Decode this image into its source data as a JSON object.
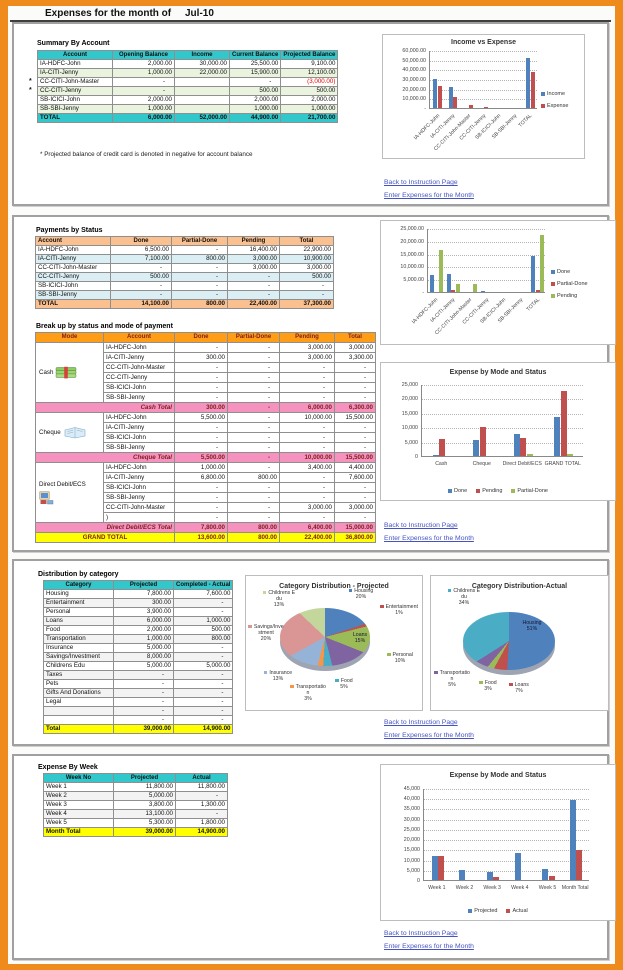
{
  "page": {
    "title_label": "Expenses for the month of",
    "title_month": "Jul-10"
  },
  "links": {
    "back": "Back to Instruction Page",
    "enter": "Enter Expenses for the Month"
  },
  "colors": {
    "frame": "#EF8A1D",
    "teal_header": "#31C7CB",
    "peach_header": "#FAC08F",
    "orange_header": "#FF9E16",
    "pink_subtotal": "#F592BE",
    "yellow_total": "#FFFF00",
    "negative": "#E00000",
    "link": "#4553C2"
  },
  "summary": {
    "label": "Summary By Account",
    "footnote": "* Projected balance of credit card is denoted in negative for account balance",
    "headers": [
      "Account",
      "Opening Balance",
      "Income",
      "Current Balance",
      "Projected Balance"
    ],
    "rows": [
      [
        "IA-HDFC-John",
        "2,000.00",
        "30,000.00",
        "25,500.00",
        "9,100.00"
      ],
      [
        "IA-CITI-Jenny",
        "1,000.00",
        "22,000.00",
        "15,900.00",
        "12,100.00"
      ],
      [
        "CC-CITI-John-Master",
        "-",
        "",
        "-",
        "(3,000.00)"
      ],
      [
        "CC-CITI-Jenny",
        "-",
        "",
        "500.00",
        "500.00"
      ],
      [
        "SB-ICICI-John",
        "2,000.00",
        "",
        "2,000.00",
        "2,000.00"
      ],
      [
        "SB-SBI-Jenny",
        "1,000.00",
        "",
        "1,000.00",
        "1,000.00"
      ]
    ],
    "total": [
      "TOTAL",
      "6,000.00",
      "52,000.00",
      "44,900.00",
      "21,700.00"
    ]
  },
  "payments": {
    "label": "Payments by Status",
    "headers": [
      "Account",
      "Done",
      "Partial-Done",
      "Pending",
      "Total"
    ],
    "rows": [
      [
        "IA-HDFC-John",
        "6,500.00",
        "-",
        "16,400.00",
        "22,900.00"
      ],
      [
        "IA-CITI-Jenny",
        "7,100.00",
        "800.00",
        "3,000.00",
        "10,900.00"
      ],
      [
        "CC-CITI-John-Master",
        "-",
        "-",
        "3,000.00",
        "3,000.00"
      ],
      [
        "CC-CITI-Jenny",
        "500.00",
        "-",
        "-",
        "500.00"
      ],
      [
        "SB-ICICI-John",
        "-",
        "-",
        "-",
        "-"
      ],
      [
        "SB-SBI-Jenny",
        "-",
        "-",
        "-",
        "-"
      ]
    ],
    "total": [
      "TOTAL",
      "14,100.00",
      "800.00",
      "22,400.00",
      "37,300.00"
    ]
  },
  "breakup": {
    "label": "Break up by status and mode of payment",
    "headers": [
      "Mode",
      "Account",
      "Done",
      "Partial-Done",
      "Pending",
      "Total"
    ],
    "groups": [
      {
        "mode": "Cash",
        "icon": "cash-icon",
        "rows": [
          [
            "IA-HDFC-John",
            "-",
            "-",
            "3,000.00",
            "3,000.00"
          ],
          [
            "IA-CITI-Jenny",
            "300.00",
            "-",
            "3,000.00",
            "3,300.00"
          ],
          [
            "CC-CITI-John-Master",
            "-",
            "-",
            "-",
            "-"
          ],
          [
            "CC-CITI-Jenny",
            "-",
            "-",
            "-",
            "-"
          ],
          [
            "SB-ICICI-John",
            "-",
            "-",
            "-",
            "-"
          ],
          [
            "SB-SBI-Jenny",
            "-",
            "-",
            "-",
            "-"
          ]
        ],
        "total": [
          "Cash Total",
          "300.00",
          "-",
          "6,000.00",
          "6,300.00"
        ]
      },
      {
        "mode": "Cheque",
        "icon": "cheque-icon",
        "rows": [
          [
            "IA-HDFC-John",
            "5,500.00",
            "-",
            "10,000.00",
            "15,500.00"
          ],
          [
            "IA-CITI-Jenny",
            "-",
            "-",
            "-",
            "-"
          ],
          [
            "SB-ICICI-John",
            "-",
            "-",
            "-",
            "-"
          ],
          [
            "SB-SBI-Jenny",
            "-",
            "-",
            "-",
            "-"
          ]
        ],
        "total": [
          "Cheque Total",
          "5,500.00",
          "-",
          "10,000.00",
          "15,500.00"
        ]
      },
      {
        "mode": "Direct Debit/ECS",
        "icon": "computer-icon",
        "rows": [
          [
            "IA-HDFC-John",
            "1,000.00",
            "-",
            "3,400.00",
            "4,400.00"
          ],
          [
            "IA-CITI-Jenny",
            "6,800.00",
            "800.00",
            "-",
            "7,600.00"
          ],
          [
            "SB-ICICI-John",
            "-",
            "-",
            "-",
            "-"
          ],
          [
            "SB-SBI-Jenny",
            "-",
            "-",
            "-",
            "-"
          ],
          [
            "CC-CITI-John-Master",
            "-",
            "-",
            "3,000.00",
            "3,000.00"
          ],
          [
            ")",
            "-",
            "-",
            "-",
            "-"
          ]
        ],
        "total": [
          "Direct Debit/ECS Total",
          "7,800.00",
          "800.00",
          "6,400.00",
          "15,000.00"
        ]
      }
    ],
    "grand_total": [
      "GRAND TOTAL",
      "13,600.00",
      "800.00",
      "22,400.00",
      "36,800.00"
    ]
  },
  "distribution": {
    "label": "Distribution by category",
    "headers": [
      "Category",
      "Projected",
      "Completed - Actual"
    ],
    "rows": [
      [
        "Housing",
        "7,800.00",
        "7,600.00"
      ],
      [
        "Entertainment",
        "300.00",
        "-"
      ],
      [
        "Personal",
        "3,900.00",
        "-"
      ],
      [
        "Loans",
        "6,000.00",
        "1,000.00"
      ],
      [
        "Food",
        "2,000.00",
        "500.00"
      ],
      [
        "Transportation",
        "1,000.00",
        "800.00"
      ],
      [
        "Insurance",
        "5,000.00",
        "-"
      ],
      [
        "Savings/Investment",
        "8,000.00",
        "-"
      ],
      [
        "Childrens Edu",
        "5,000.00",
        "5,000.00"
      ],
      [
        "Taxes",
        "-",
        "-"
      ],
      [
        "Pets",
        "-",
        "-"
      ],
      [
        "Gifts And Donations",
        "-",
        "-"
      ],
      [
        "Legal",
        "-",
        "-"
      ],
      [
        "",
        "-",
        "-"
      ],
      [
        "",
        "-",
        "-"
      ]
    ],
    "total": [
      "Total",
      "39,000.00",
      "14,900.00"
    ]
  },
  "week": {
    "label": "Expense By Week",
    "headers": [
      "Week No",
      "Projected",
      "Actual"
    ],
    "rows": [
      [
        "Week 1",
        "11,800.00",
        "11,800.00"
      ],
      [
        "Week 2",
        "5,000.00",
        "-"
      ],
      [
        "Week 3",
        "3,800.00",
        "1,300.00"
      ],
      [
        "Week 4",
        "13,100.00",
        "-"
      ],
      [
        "Week 5",
        "5,300.00",
        "1,800.00"
      ]
    ],
    "total": [
      "Month Total",
      "39,000.00",
      "14,900.00"
    ]
  },
  "chart_data": [
    {
      "id": "income_vs_expense",
      "type": "bar",
      "title": "Income vs Expense",
      "categories": [
        "IA-HDFC-John",
        "IA-CITI-Jenny",
        "CC-CITI-John-Master",
        "CC-CITI-Jenny",
        "SB-ICICI-John",
        "SB-SBI-Jenny",
        "TOTAL"
      ],
      "series": [
        {
          "name": "Income",
          "color": "#4F81BD",
          "values": [
            30000,
            22000,
            0,
            0,
            0,
            0,
            52000
          ]
        },
        {
          "name": "Expense",
          "color": "#C0504D",
          "values": [
            22900,
            10900,
            3000,
            500,
            0,
            0,
            37300
          ]
        }
      ],
      "ylim": [
        0,
        60000
      ],
      "yticks": [
        "60,000.00",
        "50,000.00",
        "40,000.00",
        "30,000.00",
        "20,000.00",
        "10,000.00",
        "-"
      ],
      "grid": true,
      "legend_position": "right"
    },
    {
      "id": "payments_by_status",
      "type": "bar",
      "title": "",
      "categories": [
        "IA-HDFC-John",
        "IA-CITI-Jenny",
        "CC-CITI-John-Master",
        "CC-CITI-Jenny",
        "SB-ICICI-John",
        "SB-SBI-Jenny",
        "TOTAL"
      ],
      "series": [
        {
          "name": "Done",
          "color": "#4F81BD",
          "values": [
            6500,
            7100,
            0,
            500,
            0,
            0,
            14100
          ]
        },
        {
          "name": "Partial-Done",
          "color": "#C0504D",
          "values": [
            0,
            800,
            0,
            0,
            0,
            0,
            800
          ]
        },
        {
          "name": "Pending",
          "color": "#9BBB59",
          "values": [
            16400,
            3000,
            3000,
            0,
            0,
            0,
            22400
          ]
        }
      ],
      "ylim": [
        0,
        25000
      ],
      "yticks": [
        "25,000.00",
        "20,000.00",
        "15,000.00",
        "10,000.00",
        "5,000.00",
        "-"
      ],
      "grid": true,
      "legend_position": "right"
    },
    {
      "id": "expense_by_mode_and_status",
      "type": "bar",
      "title": "Expense by Mode and Status",
      "categories": [
        "Cash",
        "Cheque",
        "Direct Debit/ECS",
        "GRAND TOTAL"
      ],
      "series": [
        {
          "name": "Done",
          "color": "#4F81BD",
          "values": [
            300,
            5500,
            7800,
            13600
          ]
        },
        {
          "name": "Pending",
          "color": "#C0504D",
          "values": [
            6000,
            10000,
            6400,
            22400
          ]
        },
        {
          "name": "Partial-Done",
          "color": "#9BBB59",
          "values": [
            0,
            0,
            800,
            800
          ]
        }
      ],
      "ylim": [
        0,
        25000
      ],
      "yticks": [
        "25,000",
        "20,000",
        "15,000",
        "10,000",
        "5,000",
        "0"
      ],
      "grid": true,
      "legend_position": "bottom"
    },
    {
      "id": "category_distribution_projected",
      "type": "pie",
      "title": "Category Distribution - Projected",
      "slices": [
        {
          "label": "Housing",
          "pct": 20,
          "color": "#4F81BD"
        },
        {
          "label": "Entertainment",
          "pct": 1,
          "color": "#C0504D"
        },
        {
          "label": "Personal",
          "pct": 10,
          "color": "#9BBB59"
        },
        {
          "label": "Loans",
          "pct": 15,
          "color": "#8064A2"
        },
        {
          "label": "Food",
          "pct": 5,
          "color": "#4BACC6"
        },
        {
          "label": "Transportation",
          "pct": 3,
          "color": "#F79646"
        },
        {
          "label": "Insurance",
          "pct": 13,
          "color": "#95B3D7"
        },
        {
          "label": "Savings/Investment",
          "pct": 20,
          "color": "#D99694"
        },
        {
          "label": "Childrens Edu",
          "pct": 13,
          "color": "#C3D69B"
        }
      ]
    },
    {
      "id": "category_distribution_actual",
      "type": "pie",
      "title": "Category Distribution-Actual",
      "slices": [
        {
          "label": "Housing",
          "pct": 51,
          "color": "#4F81BD"
        },
        {
          "label": "Loans",
          "pct": 7,
          "color": "#C0504D"
        },
        {
          "label": "Food",
          "pct": 3,
          "color": "#9BBB59"
        },
        {
          "label": "Transportation",
          "pct": 5,
          "color": "#8064A2"
        },
        {
          "label": "Childrens Edu",
          "pct": 34,
          "color": "#4BACC6"
        }
      ]
    },
    {
      "id": "expense_by_week",
      "type": "bar",
      "title": "Expense by Mode and Status",
      "categories": [
        "Week 1",
        "Week 2",
        "Week 3",
        "Week 4",
        "Week 5",
        "Month Total"
      ],
      "series": [
        {
          "name": "Projected",
          "color": "#4F81BD",
          "values": [
            11800,
            5000,
            3800,
            13100,
            5300,
            39000
          ]
        },
        {
          "name": "Actual",
          "color": "#C0504D",
          "values": [
            11800,
            0,
            1300,
            0,
            1800,
            14900
          ]
        }
      ],
      "ylim": [
        0,
        45000
      ],
      "yticks": [
        "45,000",
        "40,000",
        "35,000",
        "30,000",
        "25,000",
        "20,000",
        "15,000",
        "10,000",
        "5,000",
        "0"
      ],
      "grid": true,
      "legend_position": "bottom"
    }
  ]
}
